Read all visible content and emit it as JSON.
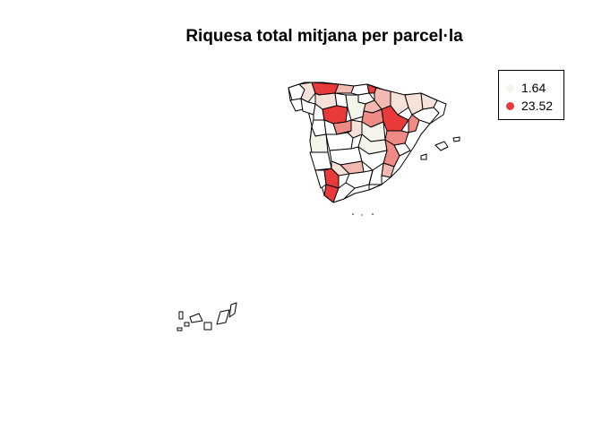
{
  "title": "Riquesa total mitjana per parcel·la",
  "legend": {
    "items": [
      {
        "label": "1.64",
        "color": "#f3f4ea"
      },
      {
        "label": "23.52",
        "color": "#e8393b"
      }
    ]
  },
  "colors": {
    "low": "#f3f4ea",
    "light": "#f6e2d9",
    "pink": "#f2b9b1",
    "salmon": "#ef8a84",
    "red": "#e8393b",
    "white": "#ffffff",
    "border": "#000000"
  }
}
